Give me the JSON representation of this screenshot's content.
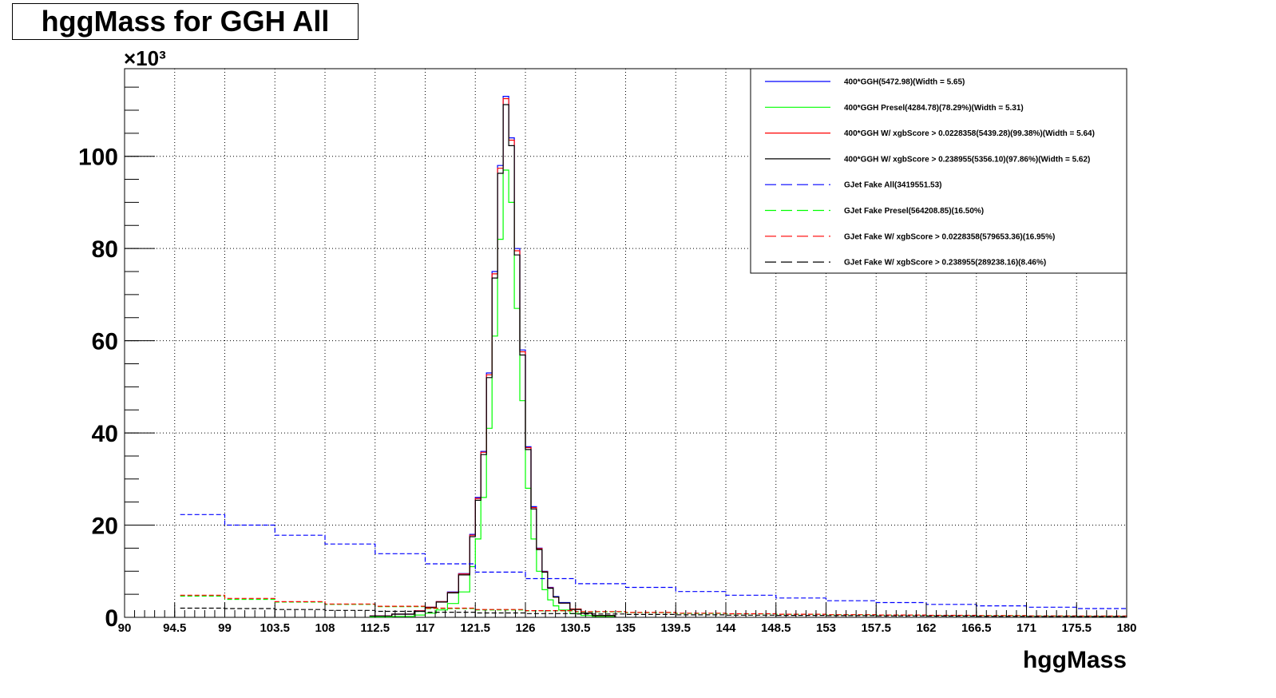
{
  "chart_data": {
    "type": "line",
    "title": "hggMass for GGH All",
    "xlabel": "hggMass",
    "ylabel": "",
    "y_multiplier": "×10³",
    "xlim": [
      90,
      180
    ],
    "ylim": [
      0,
      119
    ],
    "grid": true,
    "legend_placement": "top-right",
    "x_ticks": [
      "90",
      "94.5",
      "99",
      "103.5",
      "108",
      "112.5",
      "117",
      "121.5",
      "126",
      "130.5",
      "135",
      "139.5",
      "144",
      "148.5",
      "153",
      "157.5",
      "162",
      "166.5",
      "171",
      "175.5",
      "180"
    ],
    "y_ticks": [
      "0",
      "20",
      "40",
      "60",
      "80",
      "100"
    ],
    "series": [
      {
        "name": "400*GGH(5472.98)(Width = 5.65)",
        "color": "#0000ff",
        "style": "solid",
        "x": [
          112,
          114,
          116,
          117,
          118,
          119,
          120,
          121,
          121.5,
          122,
          122.5,
          123,
          123.5,
          124,
          124.5,
          125,
          125.5,
          126,
          126.5,
          127,
          127.5,
          128,
          128.5,
          129,
          130,
          131,
          132,
          134
        ],
        "y": [
          0.3,
          0.7,
          1.4,
          2.2,
          3.4,
          5.5,
          9.5,
          18,
          26,
          36,
          53,
          75,
          98,
          113,
          104,
          80,
          58,
          37,
          24,
          15,
          10,
          6.5,
          4.5,
          3.2,
          1.8,
          0.9,
          0.4,
          0.1
        ]
      },
      {
        "name": "400*GGH Presel(4284.78)(78.29%)(Width = 5.31)",
        "color": "#00ff00",
        "style": "solid",
        "x": [
          112,
          114,
          116,
          117,
          118,
          119,
          120,
          121,
          121.5,
          122,
          122.5,
          123,
          123.5,
          124,
          124.5,
          125,
          125.5,
          126,
          126.5,
          127,
          127.5,
          128,
          128.5,
          129,
          130,
          131,
          132,
          134
        ],
        "y": [
          0.1,
          0.2,
          0.5,
          0.9,
          1.6,
          3.0,
          5.5,
          11,
          17,
          26,
          41,
          61,
          82,
          97,
          90,
          67,
          47,
          28,
          17,
          10,
          6.0,
          3.8,
          2.5,
          1.6,
          0.8,
          0.4,
          0.2,
          0.05
        ]
      },
      {
        "name": "400*GGH W/ xgbScore > 0.0228358(5439.28)(99.38%)(Width = 5.64)",
        "color": "#ff0000",
        "style": "solid",
        "x": [
          112,
          114,
          116,
          117,
          118,
          119,
          120,
          121,
          121.5,
          122,
          122.5,
          123,
          123.5,
          124,
          124.5,
          125,
          125.5,
          126,
          126.5,
          127,
          127.5,
          128,
          128.5,
          129,
          130,
          131,
          132,
          134
        ],
        "y": [
          0.3,
          0.7,
          1.4,
          2.2,
          3.4,
          5.4,
          9.4,
          17.8,
          25.8,
          35.8,
          52.6,
          74.5,
          97.4,
          112.5,
          103.5,
          79.5,
          57.6,
          36.8,
          23.8,
          14.9,
          9.9,
          6.4,
          4.4,
          3.1,
          1.8,
          0.9,
          0.4,
          0.1
        ]
      },
      {
        "name": "400*GGH W/ xgbScore > 0.238955(5356.10)(97.86%)(Width = 5.62)",
        "color": "#000000",
        "style": "solid",
        "x": [
          112,
          114,
          116,
          117,
          118,
          119,
          120,
          121,
          121.5,
          122,
          122.5,
          123,
          123.5,
          124,
          124.5,
          125,
          125.5,
          126,
          126.5,
          127,
          127.5,
          128,
          128.5,
          129,
          130,
          131,
          132,
          134
        ],
        "y": [
          0.3,
          0.7,
          1.3,
          2.1,
          3.3,
          5.3,
          9.2,
          17.5,
          25.4,
          35.3,
          52,
          73.6,
          96.3,
          111.2,
          102.3,
          78.6,
          56.9,
          36.4,
          23.5,
          14.7,
          9.8,
          6.3,
          4.4,
          3.1,
          1.7,
          0.9,
          0.4,
          0.1
        ]
      },
      {
        "name": "GJet Fake All(3419551.53)",
        "color": "#0000ff",
        "style": "dashed",
        "x": [
          95,
          99,
          103.5,
          108,
          112.5,
          117,
          121.5,
          126,
          130.5,
          135,
          139.5,
          144,
          148.5,
          153,
          157.5,
          162,
          166.5,
          171,
          175.5,
          180
        ],
        "y": [
          22.3,
          20.0,
          17.8,
          15.9,
          13.8,
          11.6,
          9.8,
          8.4,
          7.3,
          6.5,
          5.6,
          4.8,
          4.2,
          3.6,
          3.2,
          2.8,
          2.5,
          2.2,
          1.9,
          1.6
        ]
      },
      {
        "name": "GJet Fake Presel(564208.85)(16.50%)",
        "color": "#00ff00",
        "style": "dashed",
        "x": [
          95,
          99,
          103.5,
          108,
          112.5,
          117,
          121.5,
          126,
          130.5,
          135,
          139.5,
          144,
          148.5,
          153,
          157.5,
          162,
          166.5,
          171,
          175.5,
          180
        ],
        "y": [
          4.6,
          3.9,
          3.3,
          2.8,
          2.3,
          1.9,
          1.6,
          1.4,
          1.2,
          1.0,
          0.85,
          0.75,
          0.65,
          0.55,
          0.48,
          0.42,
          0.36,
          0.3,
          0.26,
          0.22
        ]
      },
      {
        "name": "GJet Fake W/ xgbScore > 0.0228358(579653.36)(16.95%)",
        "color": "#ff0000",
        "style": "dashed",
        "x": [
          95,
          99,
          103.5,
          108,
          112.5,
          117,
          121.5,
          126,
          130.5,
          135,
          139.5,
          144,
          148.5,
          153,
          157.5,
          162,
          166.5,
          171,
          175.5,
          180
        ],
        "y": [
          4.8,
          4.1,
          3.4,
          2.9,
          2.4,
          2.0,
          1.7,
          1.45,
          1.25,
          1.05,
          0.9,
          0.78,
          0.68,
          0.58,
          0.5,
          0.44,
          0.38,
          0.32,
          0.27,
          0.23
        ]
      },
      {
        "name": "GJet Fake W/ xgbScore > 0.238955(289238.16)(8.46%)",
        "color": "#000000",
        "style": "dashed",
        "x": [
          95,
          99,
          103.5,
          108,
          112.5,
          117,
          121.5,
          126,
          130.5,
          135,
          139.5,
          144,
          148.5,
          153,
          157.5,
          162,
          166.5,
          171,
          175.5,
          180
        ],
        "y": [
          2.0,
          1.9,
          1.7,
          1.5,
          1.3,
          1.1,
          0.95,
          0.82,
          0.72,
          0.62,
          0.54,
          0.47,
          0.41,
          0.36,
          0.31,
          0.27,
          0.23,
          0.2,
          0.17,
          0.14
        ]
      }
    ]
  }
}
